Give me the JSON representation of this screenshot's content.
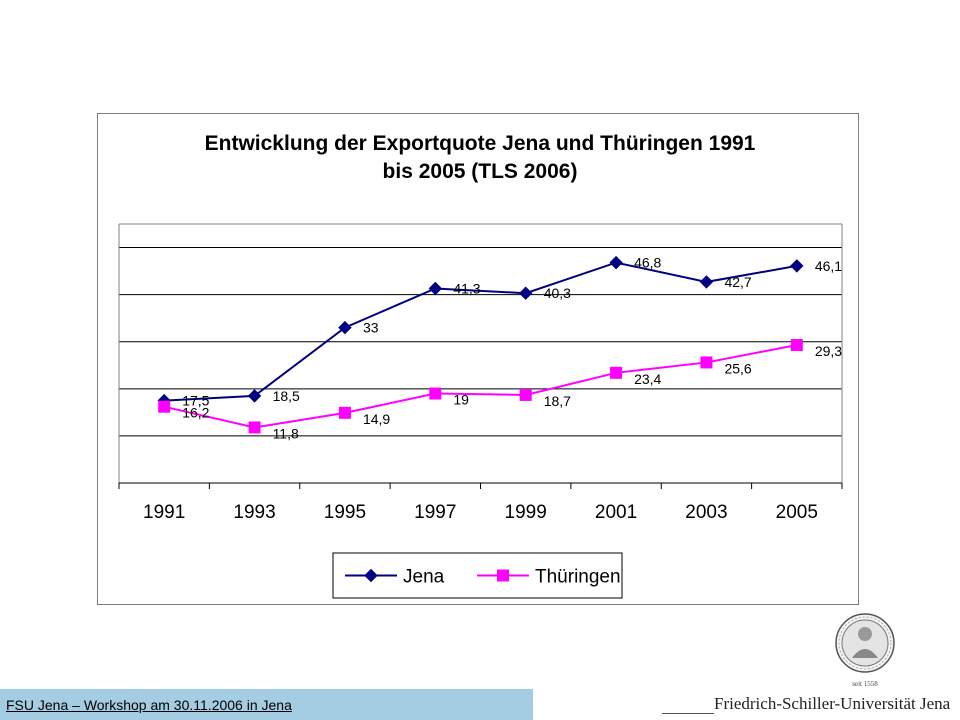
{
  "chart_data": {
    "type": "line",
    "title_line1": "Entwicklung der Exportquote Jena und Thüringen 1991",
    "title_line2": "bis 2005 (TLS 2006)",
    "xlabel": "",
    "ylabel": "",
    "categories": [
      "1991",
      "1993",
      "1995",
      "1997",
      "1999",
      "2001",
      "2003",
      "2005"
    ],
    "ylim": [
      0,
      55
    ],
    "grid": true,
    "legend_position": "bottom-center",
    "series": [
      {
        "name": "Jena",
        "color": "#000080",
        "marker": "diamond",
        "values": [
          17.5,
          18.5,
          33,
          41.3,
          40.3,
          46.8,
          42.7,
          46.1
        ],
        "labels": [
          "17,5",
          "18,5",
          "33",
          "41,3",
          "40,3",
          "46,8",
          "42,7",
          "46,1"
        ]
      },
      {
        "name": "Thüringen",
        "color": "#ff00ff",
        "marker": "square",
        "values": [
          16.2,
          11.8,
          14.9,
          19,
          18.7,
          23.4,
          25.6,
          29.3
        ],
        "labels": [
          "16,2",
          "11,8",
          "14,9",
          "19",
          "18,7",
          "23,4",
          "25,6",
          "29,3"
        ]
      }
    ]
  },
  "footer": {
    "text": "FSU Jena – Workshop am 30.11.2006 in Jena"
  },
  "branding": {
    "university_name": "Friedrich-Schiller-Universität Jena",
    "seal_caption": "seit 1558",
    "seal_icon": "university-seal-icon"
  }
}
